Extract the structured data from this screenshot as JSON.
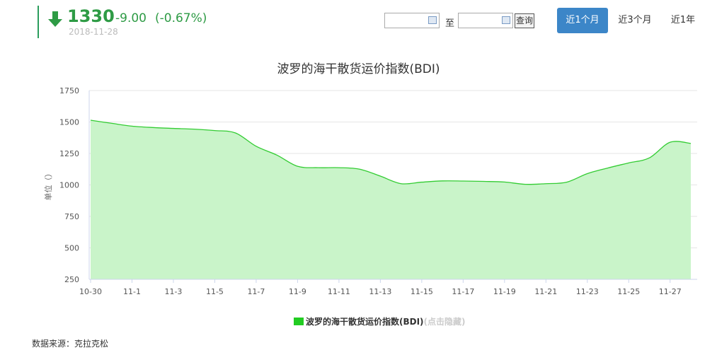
{
  "quote": {
    "price": "1330",
    "change": "-9.00",
    "change_pct": "(-0.67%)",
    "date": "2018-11-28",
    "direction_icon": "arrow-down-icon",
    "color": "#2e9b45"
  },
  "controls": {
    "start_date": "",
    "end_date": "",
    "to_label": "至",
    "query_label": "查询",
    "calendar_icon": "calendar-icon",
    "ranges": [
      {
        "label": "近1个月",
        "active": true
      },
      {
        "label": "近3个月",
        "active": false
      },
      {
        "label": "近1年",
        "active": false
      }
    ],
    "active_color": "#3c86c8"
  },
  "chart_data": {
    "type": "area",
    "title": "波罗的海干散货运价指数(BDI)",
    "ylabel": "单位（）",
    "xlabel": "",
    "ylim": [
      250,
      1750
    ],
    "yticks": [
      250,
      500,
      750,
      1000,
      1250,
      1500,
      1750
    ],
    "xticklabels": [
      "10-30",
      "11-1",
      "11-3",
      "11-5",
      "11-7",
      "11-9",
      "11-11",
      "11-13",
      "11-15",
      "11-17",
      "11-19",
      "11-21",
      "11-23",
      "11-25",
      "11-27"
    ],
    "x": [
      "10-30",
      "10-31",
      "11-1",
      "11-2",
      "11-3",
      "11-4",
      "11-5",
      "11-6",
      "11-7",
      "11-8",
      "11-9",
      "11-10",
      "11-11",
      "11-12",
      "11-13",
      "11-14",
      "11-15",
      "11-16",
      "11-17",
      "11-18",
      "11-19",
      "11-20",
      "11-21",
      "11-22",
      "11-23",
      "11-24",
      "11-25",
      "11-26",
      "11-27",
      "11-28"
    ],
    "series": [
      {
        "name": "波罗的海干散货运价指数(BDI)",
        "values": [
          1514,
          1490,
          1467,
          1456,
          1449,
          1443,
          1432,
          1413,
          1307,
          1237,
          1148,
          1137,
          1137,
          1125,
          1070,
          1010,
          1022,
          1032,
          1031,
          1028,
          1023,
          1005,
          1010,
          1022,
          1090,
          1135,
          1175,
          1215,
          1339,
          1330
        ]
      }
    ],
    "colors": {
      "line": "#33cc33",
      "fill": "#c9f4c9"
    },
    "legend": {
      "position": "bottom-center",
      "hint": "(点击隐藏)"
    },
    "grid": true
  },
  "source": "数据来源：克拉克松"
}
